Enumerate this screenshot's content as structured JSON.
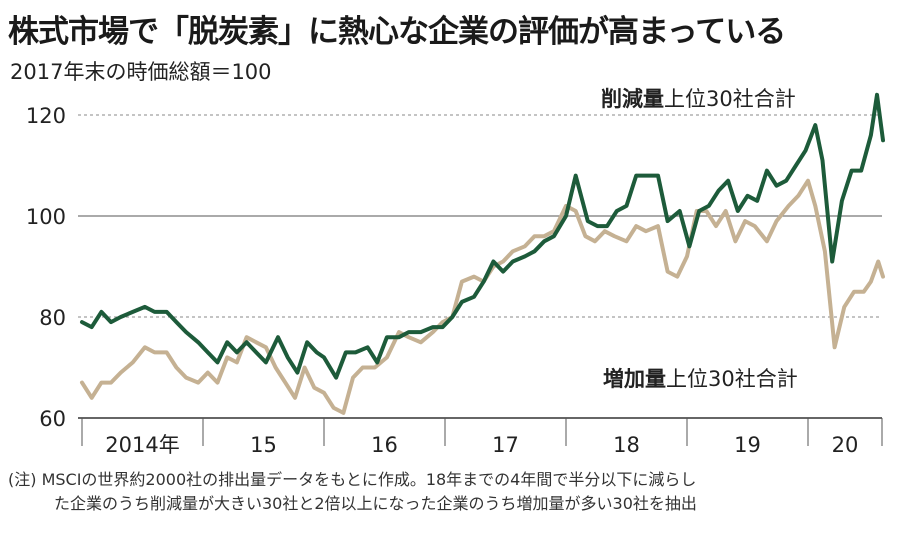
{
  "header": {
    "title": "株式市場で「脱炭素」に熱心な企業の評価が高まっている",
    "subtitle": "2017年末の時価総額＝100"
  },
  "note": {
    "line1": "(注) MSCIの世界約2000社の排出量データをもとに作成。18年までの4年間で半分以下に減らし",
    "line2": "た企業のうち削減量が大きい30社と2倍以上になった企業のうち増加量が多い30社を抽出"
  },
  "colors": {
    "reduction": "#1d5b3a",
    "increase": "#c5b193",
    "grid": "#888888"
  },
  "chart_data": {
    "type": "line",
    "ylim": [
      60,
      125
    ],
    "xlim": [
      2014.0,
      2020.62
    ],
    "yticks": [
      {
        "value": 60,
        "label": "60"
      },
      {
        "value": 80,
        "label": "80"
      },
      {
        "value": 100,
        "label": "100"
      },
      {
        "value": 120,
        "label": "120"
      }
    ],
    "year_ticks": [
      {
        "value": 2014,
        "label": "2014年"
      },
      {
        "value": 2015,
        "label": "15"
      },
      {
        "value": 2016,
        "label": "16"
      },
      {
        "value": 2017,
        "label": "17"
      },
      {
        "value": 2018,
        "label": "18"
      },
      {
        "value": 2019,
        "label": "19"
      },
      {
        "value": 2020,
        "label": "20"
      }
    ],
    "series": [
      {
        "key": "reduction",
        "name": "削減量上位30社合計",
        "name_bold": "削減量",
        "name_rest": "上位30社合計",
        "points": [
          [
            2014.0,
            79
          ],
          [
            2014.08,
            78
          ],
          [
            2014.16,
            81
          ],
          [
            2014.24,
            79
          ],
          [
            2014.32,
            80
          ],
          [
            2014.42,
            81
          ],
          [
            2014.52,
            82
          ],
          [
            2014.6,
            81
          ],
          [
            2014.7,
            81
          ],
          [
            2014.78,
            79
          ],
          [
            2014.86,
            77
          ],
          [
            2014.96,
            75
          ],
          [
            2015.04,
            73
          ],
          [
            2015.12,
            71
          ],
          [
            2015.2,
            75
          ],
          [
            2015.28,
            73
          ],
          [
            2015.36,
            75
          ],
          [
            2015.44,
            73
          ],
          [
            2015.52,
            71
          ],
          [
            2015.62,
            76
          ],
          [
            2015.7,
            72
          ],
          [
            2015.78,
            69
          ],
          [
            2015.86,
            75
          ],
          [
            2015.94,
            73
          ],
          [
            2016.0,
            72
          ],
          [
            2016.1,
            68
          ],
          [
            2016.18,
            73
          ],
          [
            2016.26,
            73
          ],
          [
            2016.36,
            74
          ],
          [
            2016.44,
            71
          ],
          [
            2016.52,
            76
          ],
          [
            2016.62,
            76
          ],
          [
            2016.7,
            77
          ],
          [
            2016.8,
            77
          ],
          [
            2016.9,
            78
          ],
          [
            2016.98,
            78
          ],
          [
            2017.06,
            80
          ],
          [
            2017.14,
            83
          ],
          [
            2017.24,
            84
          ],
          [
            2017.32,
            87
          ],
          [
            2017.4,
            91
          ],
          [
            2017.48,
            89
          ],
          [
            2017.56,
            91
          ],
          [
            2017.66,
            92
          ],
          [
            2017.74,
            93
          ],
          [
            2017.82,
            95
          ],
          [
            2017.9,
            96
          ],
          [
            2018.0,
            100
          ],
          [
            2018.08,
            108
          ],
          [
            2018.18,
            99
          ],
          [
            2018.26,
            98
          ],
          [
            2018.34,
            98
          ],
          [
            2018.42,
            101
          ],
          [
            2018.5,
            102
          ],
          [
            2018.58,
            108
          ],
          [
            2018.66,
            108
          ],
          [
            2018.76,
            108
          ],
          [
            2018.84,
            99
          ],
          [
            2018.94,
            101
          ],
          [
            2019.02,
            94
          ],
          [
            2019.1,
            101
          ],
          [
            2019.18,
            102
          ],
          [
            2019.26,
            105
          ],
          [
            2019.34,
            107
          ],
          [
            2019.42,
            101
          ],
          [
            2019.5,
            104
          ],
          [
            2019.58,
            103
          ],
          [
            2019.66,
            109
          ],
          [
            2019.74,
            106
          ],
          [
            2019.82,
            107
          ],
          [
            2019.9,
            110
          ],
          [
            2019.98,
            113
          ],
          [
            2020.06,
            118
          ],
          [
            2020.12,
            111
          ],
          [
            2020.2,
            91
          ],
          [
            2020.28,
            103
          ],
          [
            2020.36,
            109
          ],
          [
            2020.44,
            109
          ],
          [
            2020.52,
            116
          ],
          [
            2020.57,
            124
          ],
          [
            2020.62,
            115
          ]
        ]
      },
      {
        "key": "increase",
        "name": "増加量上位30社合計",
        "name_bold": "増加量",
        "name_rest": "上位30社合計",
        "points": [
          [
            2014.0,
            67
          ],
          [
            2014.08,
            64
          ],
          [
            2014.16,
            67
          ],
          [
            2014.24,
            67
          ],
          [
            2014.32,
            69
          ],
          [
            2014.42,
            71
          ],
          [
            2014.52,
            74
          ],
          [
            2014.6,
            73
          ],
          [
            2014.7,
            73
          ],
          [
            2014.78,
            70
          ],
          [
            2014.86,
            68
          ],
          [
            2014.96,
            67
          ],
          [
            2015.04,
            69
          ],
          [
            2015.12,
            67
          ],
          [
            2015.2,
            72
          ],
          [
            2015.28,
            71
          ],
          [
            2015.36,
            76
          ],
          [
            2015.44,
            75
          ],
          [
            2015.52,
            74
          ],
          [
            2015.6,
            70
          ],
          [
            2015.68,
            67
          ],
          [
            2015.76,
            64
          ],
          [
            2015.84,
            70
          ],
          [
            2015.92,
            66
          ],
          [
            2016.0,
            65
          ],
          [
            2016.08,
            62
          ],
          [
            2016.16,
            61
          ],
          [
            2016.24,
            68
          ],
          [
            2016.32,
            70
          ],
          [
            2016.42,
            70
          ],
          [
            2016.52,
            72
          ],
          [
            2016.62,
            77
          ],
          [
            2016.7,
            76
          ],
          [
            2016.8,
            75
          ],
          [
            2016.9,
            77
          ],
          [
            2016.98,
            79
          ],
          [
            2017.06,
            80
          ],
          [
            2017.14,
            87
          ],
          [
            2017.24,
            88
          ],
          [
            2017.32,
            87
          ],
          [
            2017.4,
            90
          ],
          [
            2017.48,
            91
          ],
          [
            2017.56,
            93
          ],
          [
            2017.66,
            94
          ],
          [
            2017.74,
            96
          ],
          [
            2017.82,
            96
          ],
          [
            2017.9,
            97
          ],
          [
            2018.0,
            102
          ],
          [
            2018.08,
            101
          ],
          [
            2018.16,
            96
          ],
          [
            2018.24,
            95
          ],
          [
            2018.32,
            97
          ],
          [
            2018.4,
            96
          ],
          [
            2018.5,
            95
          ],
          [
            2018.58,
            98
          ],
          [
            2018.66,
            97
          ],
          [
            2018.76,
            98
          ],
          [
            2018.84,
            89
          ],
          [
            2018.92,
            88
          ],
          [
            2019.0,
            92
          ],
          [
            2019.08,
            101
          ],
          [
            2019.16,
            101
          ],
          [
            2019.24,
            98
          ],
          [
            2019.32,
            101
          ],
          [
            2019.4,
            95
          ],
          [
            2019.48,
            99
          ],
          [
            2019.56,
            98
          ],
          [
            2019.66,
            95
          ],
          [
            2019.74,
            99
          ],
          [
            2019.84,
            102
          ],
          [
            2019.92,
            104
          ],
          [
            2020.0,
            107
          ],
          [
            2020.06,
            102
          ],
          [
            2020.14,
            93
          ],
          [
            2020.22,
            74
          ],
          [
            2020.3,
            82
          ],
          [
            2020.38,
            85
          ],
          [
            2020.46,
            85
          ],
          [
            2020.52,
            87
          ],
          [
            2020.58,
            91
          ],
          [
            2020.62,
            88
          ]
        ]
      }
    ]
  }
}
